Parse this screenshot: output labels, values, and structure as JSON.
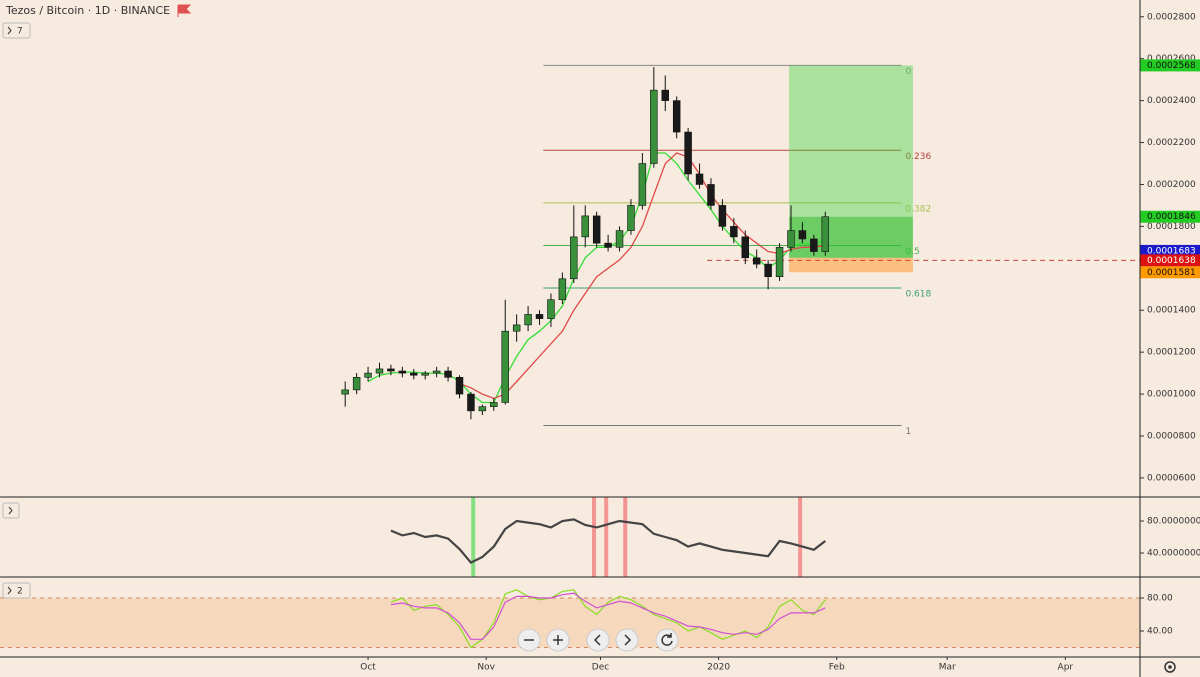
{
  "chart_data": [
    {
      "type": "candlestick",
      "title": "Tezos / Bitcoin · 1D · BINANCE",
      "badge": "7",
      "x": [
        -6,
        -3,
        0,
        3,
        6,
        9,
        12,
        15,
        18,
        21,
        24,
        27,
        30,
        33,
        36,
        39,
        42,
        45,
        48,
        51,
        54,
        57,
        60,
        63,
        66,
        69,
        72,
        75,
        78,
        81,
        84,
        87,
        90,
        93,
        96,
        99,
        102,
        105,
        108,
        111,
        114,
        117,
        120
      ],
      "open": [
        0.0001,
        0.000102,
        0.000108,
        0.00011,
        0.000112,
        0.000111,
        0.00011,
        0.000109,
        0.00011,
        0.000111,
        0.000108,
        0.0001,
        9.2e-05,
        9.4e-05,
        9.6e-05,
        0.00013,
        0.000133,
        0.000138,
        0.000136,
        0.000145,
        0.000155,
        0.000175,
        0.000185,
        0.000172,
        0.00017,
        0.000178,
        0.00019,
        0.00021,
        0.000245,
        0.00024,
        0.000225,
        0.000205,
        0.0002,
        0.00019,
        0.00018,
        0.000175,
        0.000165,
        0.000162,
        0.000156,
        0.00017,
        0.000178,
        0.000174,
        0.000168
      ],
      "high": [
        0.000106,
        0.00011,
        0.000113,
        0.000115,
        0.000114,
        0.000113,
        0.000112,
        0.000111,
        0.000113,
        0.000113,
        0.000109,
        0.000101,
        9.5e-05,
        9.8e-05,
        0.000145,
        0.000138,
        0.000142,
        0.00014,
        0.000148,
        0.000158,
        0.00019,
        0.00019,
        0.000187,
        0.000176,
        0.00018,
        0.000193,
        0.000215,
        0.000256,
        0.000252,
        0.000242,
        0.000227,
        0.00021,
        0.000203,
        0.000193,
        0.000184,
        0.000178,
        0.000169,
        0.000164,
        0.000172,
        0.00019,
        0.000182,
        0.000176,
        0.000187
      ],
      "low": [
        9.4e-05,
        0.0001,
        0.000106,
        0.000108,
        0.000109,
        0.000108,
        0.000107,
        0.000107,
        0.000108,
        0.000106,
        9.8e-05,
        8.8e-05,
        9e-05,
        9.2e-05,
        9.5e-05,
        0.000125,
        0.00013,
        0.000133,
        0.000132,
        0.000143,
        0.000153,
        0.00017,
        0.00017,
        0.000168,
        0.000168,
        0.000176,
        0.000188,
        0.000208,
        0.000235,
        0.000222,
        0.000202,
        0.000198,
        0.000188,
        0.000178,
        0.000172,
        0.000162,
        0.00016,
        0.00015,
        0.000154,
        0.000168,
        0.000172,
        0.000166,
        0.000166
      ],
      "close": [
        0.000102,
        0.000108,
        0.00011,
        0.000112,
        0.000111,
        0.00011,
        0.000109,
        0.00011,
        0.000111,
        0.000108,
        0.0001,
        9.2e-05,
        9.4e-05,
        9.6e-05,
        0.00013,
        0.000133,
        0.000138,
        0.000136,
        0.000145,
        0.000155,
        0.000175,
        0.000185,
        0.000172,
        0.00017,
        0.000178,
        0.00019,
        0.00021,
        0.000245,
        0.00024,
        0.000225,
        0.000205,
        0.0002,
        0.00019,
        0.00018,
        0.000175,
        0.000165,
        0.000162,
        0.000156,
        0.00017,
        0.000178,
        0.000174,
        0.000168,
        0.0001846
      ],
      "up_color": "#3a8f3a",
      "down_color": "#1a1a1a",
      "overlays": [
        {
          "color": "#33dd33",
          "values": [
            null,
            null,
            0.000106,
            0.000109,
            0.00011,
            0.0001105,
            0.0001105,
            0.00011,
            0.00011,
            0.0001095,
            0.000106,
            0.0001,
            9.6e-05,
            9.6e-05,
            0.000108,
            0.000118,
            0.000126,
            0.00013,
            0.000135,
            0.000142,
            0.000155,
            0.000165,
            0.00017,
            0.00017,
            0.000173,
            0.00018,
            0.000195,
            0.000215,
            0.000215,
            0.00021,
            0.000202,
            0.000195,
            0.000188,
            0.00018,
            0.000174,
            0.000168,
            0.000165,
            0.00016,
            0.000164,
            0.00017,
            0.000172,
            0.000171,
            0.000174
          ]
        },
        {
          "color": "#e04a4a",
          "values": [
            null,
            null,
            null,
            null,
            null,
            null,
            null,
            null,
            null,
            null,
            0.000105,
            0.000103,
            0.0001,
            9.8e-05,
            0.0001,
            0.000106,
            0.000112,
            0.000118,
            0.000124,
            0.00013,
            0.00014,
            0.000148,
            0.000156,
            0.00016,
            0.000164,
            0.00017,
            0.00018,
            0.000195,
            0.00021,
            0.000215,
            0.000213,
            0.000205,
            0.000195,
            0.000188,
            0.000182,
            0.000176,
            0.000172,
            0.000168,
            0.000167,
            0.000169,
            0.00017,
            0.00017,
            0.000171
          ]
        }
      ],
      "fib_range": [
        46,
        140
      ],
      "fib": [
        {
          "ratio": "0",
          "value": 0.0002568,
          "color": "#888888"
        },
        {
          "ratio": "0.236",
          "value": 0.0002163,
          "color": "#b0443a"
        },
        {
          "ratio": "0.382",
          "value": 0.0001912,
          "color": "#a8c050"
        },
        {
          "ratio": "0.5",
          "value": 0.0001709,
          "color": "#4caf50"
        },
        {
          "ratio": "0.618",
          "value": 0.0001506,
          "color": "#3aa070"
        },
        {
          "ratio": "1",
          "value": 8.5e-05,
          "color": "#777777"
        }
      ],
      "position": {
        "start": 110.5,
        "end": 143,
        "target": 0.0002568,
        "last": 0.0001846,
        "entry": 0.000165,
        "stop": 0.0001581
      },
      "alert_line": {
        "start": 89,
        "value": 0.0001638,
        "color": "#d04040"
      },
      "price_labels": [
        {
          "value": 0.0002568,
          "color": "#22cc22"
        },
        {
          "value": 0.0001846,
          "color": "#22cc22"
        },
        {
          "value": 0.0001683,
          "color": "#1a1acc"
        },
        {
          "value": 0.0001638,
          "color": "#dd1111"
        },
        {
          "value": 0.0001581,
          "color": "#ff9900"
        }
      ],
      "xlim": [
        -96.6,
        202.6
      ],
      "xticks": [
        {
          "value": 0,
          "label": "Oct"
        },
        {
          "value": 31,
          "label": "Nov"
        },
        {
          "value": 61,
          "label": "Dec"
        },
        {
          "value": 92,
          "label": "2020"
        },
        {
          "value": 123,
          "label": "Feb"
        },
        {
          "value": 152,
          "label": "Mar"
        },
        {
          "value": 183,
          "label": "Apr"
        }
      ],
      "ylim": [
        5.09e-05,
        0.000288
      ],
      "yticks": [
        {
          "value": 0.00028,
          "label": "0.0002800"
        },
        {
          "value": 0.00026,
          "label": "0.0002600"
        },
        {
          "value": 0.00024,
          "label": "0.0002400"
        },
        {
          "value": 0.00022,
          "label": "0.0002200"
        },
        {
          "value": 0.0002,
          "label": "0.0002000"
        },
        {
          "value": 0.00018,
          "label": "0.0001800"
        },
        {
          "value": 0.00016,
          "label": "0.0001600"
        },
        {
          "value": 0.00014,
          "label": "0.0001400"
        },
        {
          "value": 0.00012,
          "label": "0.0001200"
        },
        {
          "value": 0.0001,
          "label": "0.0001000"
        },
        {
          "value": 8e-05,
          "label": "0.0000800"
        },
        {
          "value": 6e-05,
          "label": "0.0000600"
        }
      ]
    },
    {
      "type": "line",
      "series": [
        {
          "color": "#444444",
          "values": [
            null,
            null,
            null,
            null,
            68,
            62,
            65,
            60,
            62,
            58,
            45,
            28,
            35,
            48,
            70,
            80,
            78,
            76,
            72,
            80,
            82,
            75,
            72,
            76,
            80,
            78,
            76,
            64,
            60,
            56,
            48,
            52,
            48,
            44,
            42,
            40,
            38,
            36,
            55,
            52,
            48,
            44,
            55
          ]
        }
      ],
      "signals": {
        "x": [
          27.6,
          59.3,
          62.5,
          67.5,
          113.4
        ],
        "colors": [
          "#66dd66",
          "#f08080",
          "#f08080",
          "#f08080",
          "#f08080"
        ]
      },
      "ylim": [
        10,
        110
      ],
      "yticks": [
        {
          "value": 80,
          "label": "80.0000000"
        },
        {
          "value": 40,
          "label": "40.0000000"
        }
      ]
    },
    {
      "type": "line",
      "badge": "2",
      "band": [
        20,
        80
      ],
      "series": [
        {
          "color": "#88dd22",
          "values": [
            null,
            null,
            null,
            null,
            75,
            80,
            65,
            70,
            72,
            60,
            45,
            20,
            30,
            50,
            85,
            90,
            82,
            78,
            80,
            88,
            90,
            70,
            60,
            75,
            82,
            78,
            70,
            60,
            55,
            50,
            40,
            45,
            38,
            30,
            35,
            40,
            32,
            45,
            70,
            78,
            65,
            60,
            78
          ]
        },
        {
          "color": "#d050d0",
          "values": [
            null,
            null,
            null,
            null,
            72,
            74,
            70,
            68,
            68,
            62,
            50,
            30,
            30,
            45,
            75,
            82,
            82,
            80,
            80,
            84,
            86,
            76,
            68,
            72,
            76,
            74,
            68,
            62,
            58,
            52,
            46,
            45,
            42,
            38,
            36,
            38,
            36,
            42,
            55,
            62,
            62,
            62,
            68
          ]
        }
      ],
      "ylim": [
        8.5,
        105.5
      ],
      "yticks": [
        {
          "value": 80,
          "label": "80.00"
        },
        {
          "value": 40,
          "label": "40.00"
        }
      ]
    }
  ]
}
